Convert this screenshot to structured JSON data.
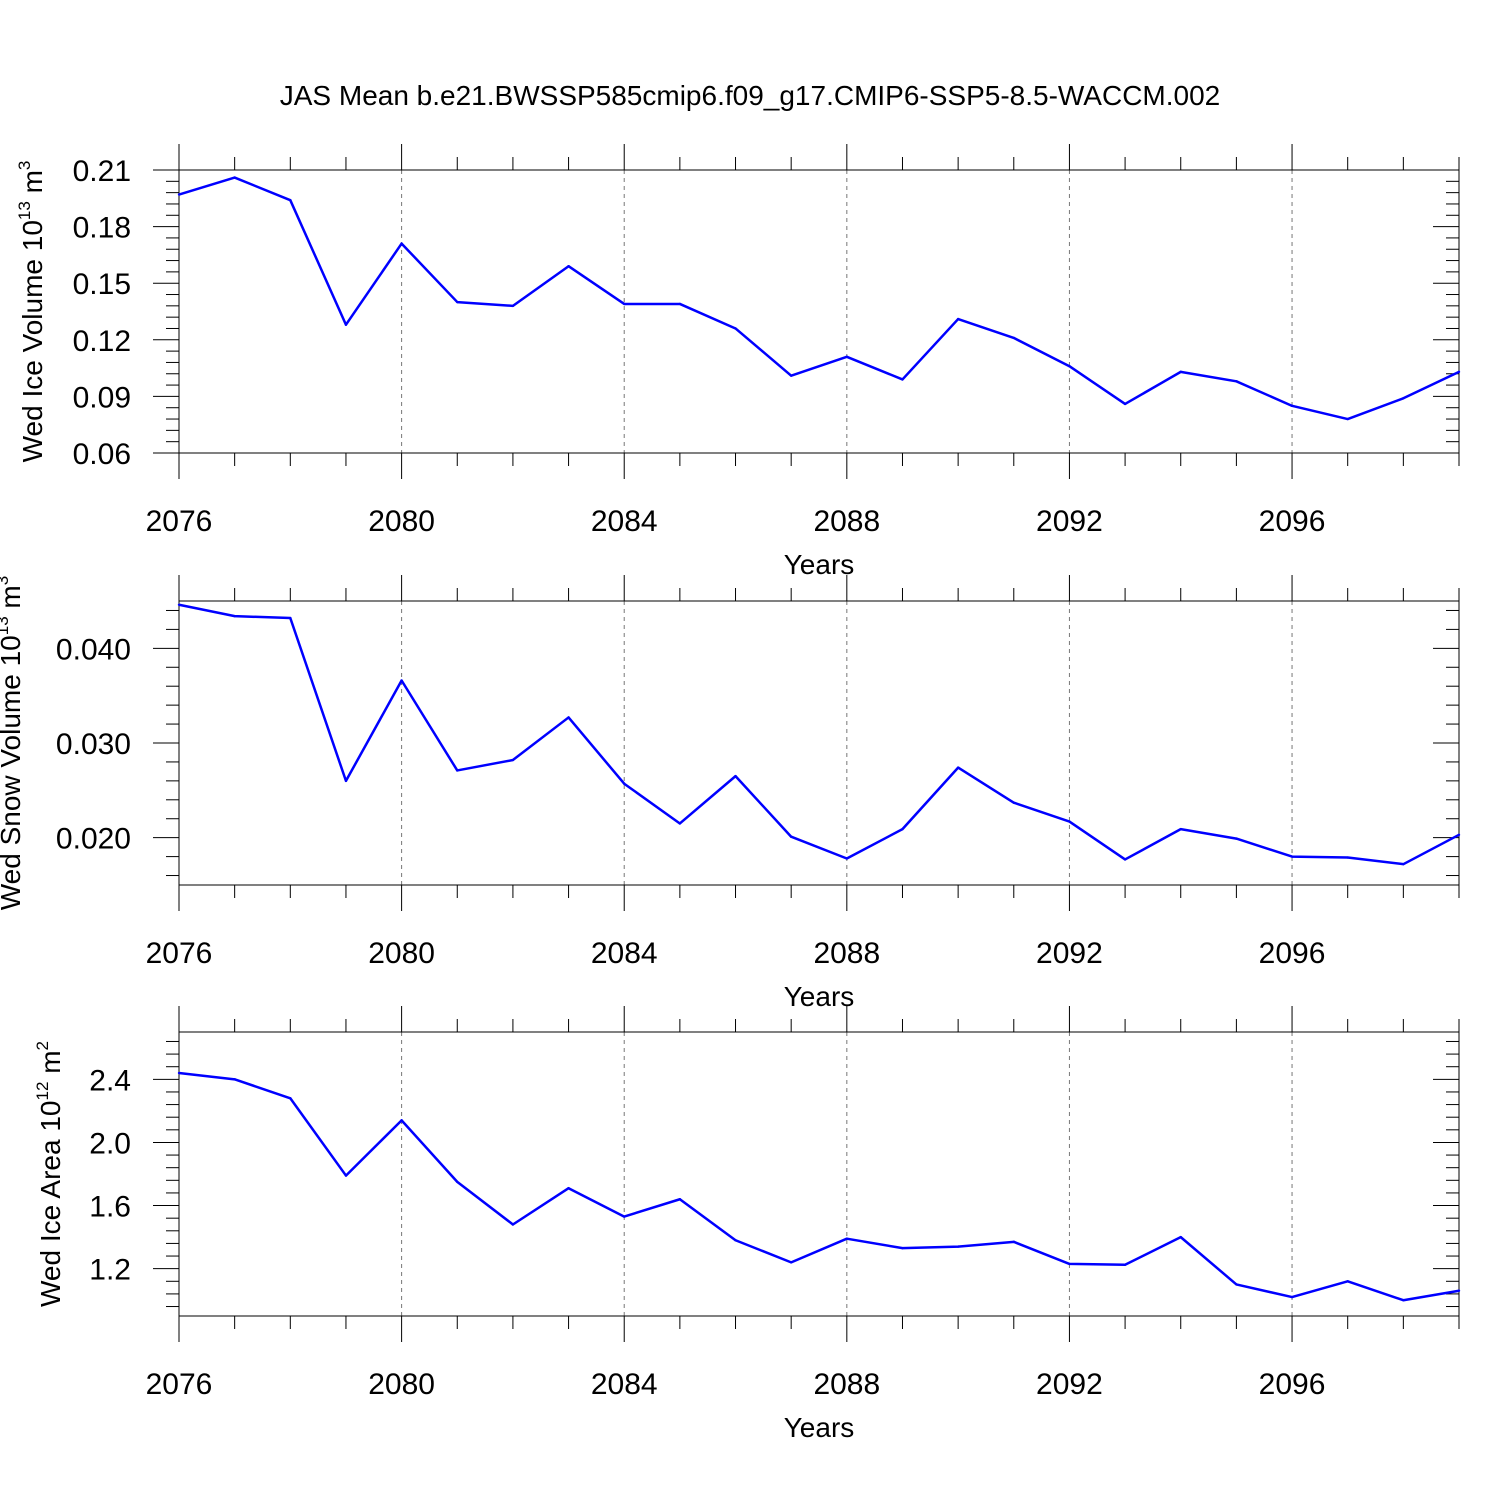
{
  "title": "JAS Mean b.e21.BWSSP585cmip6.f09_g17.CMIP6-SSP5-8.5-WACCM.002",
  "line_color": "#0000ff",
  "grid_color": "#777777",
  "chart_data": [
    {
      "type": "line",
      "xlabel": "Years",
      "ylabel": {
        "text": "Wed Ice Volume 10",
        "exp": "13",
        "unit": " m",
        "unit_exp": "3"
      },
      "x": [
        2076,
        2077,
        2078,
        2079,
        2080,
        2081,
        2082,
        2083,
        2084,
        2085,
        2086,
        2087,
        2088,
        2089,
        2090,
        2091,
        2092,
        2093,
        2094,
        2095,
        2096,
        2097,
        2098,
        2099
      ],
      "values": [
        0.197,
        0.206,
        0.194,
        0.128,
        0.171,
        0.14,
        0.138,
        0.159,
        0.139,
        0.139,
        0.126,
        0.101,
        0.111,
        0.099,
        0.131,
        0.121,
        0.106,
        0.086,
        0.103,
        0.098,
        0.085,
        0.078,
        0.089,
        0.103
      ],
      "ylim": [
        0.06,
        0.21
      ],
      "yticks": [
        0.06,
        0.09,
        0.12,
        0.15,
        0.18,
        0.21
      ],
      "ytick_labels": [
        "0.06",
        "0.09",
        "0.12",
        "0.15",
        "0.18",
        "0.21"
      ],
      "xlim": [
        2076,
        2099
      ],
      "xticks": [
        2076,
        2080,
        2084,
        2088,
        2092,
        2096
      ],
      "xtick_labels": [
        "2076",
        "2080",
        "2084",
        "2088",
        "2092",
        "2096"
      ],
      "grid": "vertical dashed at labeled years"
    },
    {
      "type": "line",
      "xlabel": "Years",
      "ylabel": {
        "text": "Wed Snow Volume 10",
        "exp": "13",
        "unit": " m",
        "unit_exp": "3"
      },
      "x": [
        2076,
        2077,
        2078,
        2079,
        2080,
        2081,
        2082,
        2083,
        2084,
        2085,
        2086,
        2087,
        2088,
        2089,
        2090,
        2091,
        2092,
        2093,
        2094,
        2095,
        2096,
        2097,
        2098,
        2099
      ],
      "values": [
        0.0446,
        0.0434,
        0.0432,
        0.026,
        0.0366,
        0.0271,
        0.0282,
        0.0327,
        0.0257,
        0.0215,
        0.0265,
        0.0201,
        0.0178,
        0.0209,
        0.0274,
        0.0237,
        0.0217,
        0.0177,
        0.0209,
        0.0199,
        0.018,
        0.0179,
        0.0172,
        0.0203
      ],
      "ylim": [
        0.015,
        0.045
      ],
      "yticks": [
        0.02,
        0.03,
        0.04
      ],
      "ytick_labels": [
        "0.020",
        "0.030",
        "0.040"
      ],
      "xlim": [
        2076,
        2099
      ],
      "xticks": [
        2076,
        2080,
        2084,
        2088,
        2092,
        2096
      ],
      "xtick_labels": [
        "2076",
        "2080",
        "2084",
        "2088",
        "2092",
        "2096"
      ],
      "grid": "vertical dashed at labeled years"
    },
    {
      "type": "line",
      "xlabel": "Years",
      "ylabel": {
        "text": "Wed Ice Area 10",
        "exp": "12",
        "unit": " m",
        "unit_exp": "2"
      },
      "x": [
        2076,
        2077,
        2078,
        2079,
        2080,
        2081,
        2082,
        2083,
        2084,
        2085,
        2086,
        2087,
        2088,
        2089,
        2090,
        2091,
        2092,
        2093,
        2094,
        2095,
        2096,
        2097,
        2098,
        2099
      ],
      "values": [
        2.44,
        2.4,
        2.28,
        1.79,
        2.14,
        1.75,
        1.48,
        1.71,
        1.53,
        1.64,
        1.38,
        1.24,
        1.39,
        1.33,
        1.34,
        1.37,
        1.23,
        1.225,
        1.4,
        1.1,
        1.02,
        1.12,
        1.0,
        1.06
      ],
      "ylim": [
        0.9,
        2.7
      ],
      "yticks": [
        1.2,
        1.6,
        2.0,
        2.4
      ],
      "ytick_labels": [
        "1.2",
        "1.6",
        "2.0",
        "2.4"
      ],
      "xlim": [
        2076,
        2099
      ],
      "xticks": [
        2076,
        2080,
        2084,
        2088,
        2092,
        2096
      ],
      "xtick_labels": [
        "2076",
        "2080",
        "2084",
        "2088",
        "2092",
        "2096"
      ],
      "grid": "vertical dashed at labeled years"
    }
  ]
}
